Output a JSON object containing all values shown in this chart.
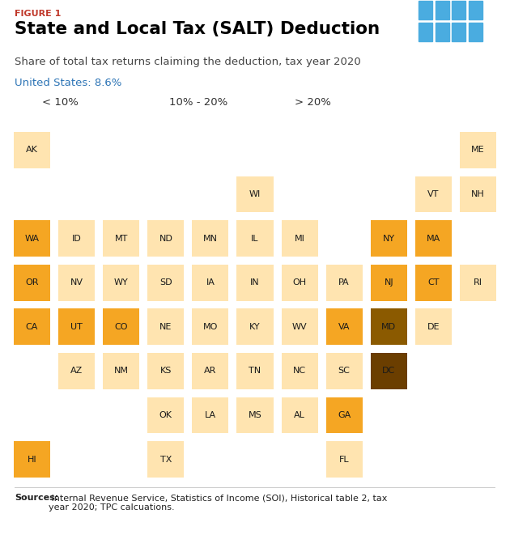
{
  "title": "State and Local Tax (SALT) Deduction",
  "figure_label": "FIGURE 1",
  "subtitle": "Share of total tax returns claiming the deduction, tax year 2020",
  "us_note": "United States: 8.6%",
  "sources_bold": "Sources:",
  "sources_rest": " Internal Revenue Service, Statistics of Income (SOI), Historical table 2, tax\nyear 2020; TPC calcuations.",
  "colors": {
    "low": "#FFE4B0",
    "mid": "#F5A623",
    "high": "#8B5A00",
    "dark_brown": "#6B3E00"
  },
  "legend": [
    {
      "label": "< 10%",
      "color": "#FFE4B0"
    },
    {
      "label": "10% - 20%",
      "color": "#F5A623"
    },
    {
      "label": "> 20%",
      "color": "#8B5A00"
    }
  ],
  "states": [
    {
      "abbr": "AK",
      "col": 0,
      "row": 0,
      "color": "#FFE4B0"
    },
    {
      "abbr": "ME",
      "col": 10,
      "row": 0,
      "color": "#FFE4B0"
    },
    {
      "abbr": "WI",
      "col": 5,
      "row": 1,
      "color": "#FFE4B0"
    },
    {
      "abbr": "VT",
      "col": 9,
      "row": 1,
      "color": "#FFE4B0"
    },
    {
      "abbr": "NH",
      "col": 10,
      "row": 1,
      "color": "#FFE4B0"
    },
    {
      "abbr": "WA",
      "col": 0,
      "row": 2,
      "color": "#F5A623"
    },
    {
      "abbr": "ID",
      "col": 1,
      "row": 2,
      "color": "#FFE4B0"
    },
    {
      "abbr": "MT",
      "col": 2,
      "row": 2,
      "color": "#FFE4B0"
    },
    {
      "abbr": "ND",
      "col": 3,
      "row": 2,
      "color": "#FFE4B0"
    },
    {
      "abbr": "MN",
      "col": 4,
      "row": 2,
      "color": "#FFE4B0"
    },
    {
      "abbr": "IL",
      "col": 5,
      "row": 2,
      "color": "#FFE4B0"
    },
    {
      "abbr": "MI",
      "col": 6,
      "row": 2,
      "color": "#FFE4B0"
    },
    {
      "abbr": "NY",
      "col": 8,
      "row": 2,
      "color": "#F5A623"
    },
    {
      "abbr": "MA",
      "col": 9,
      "row": 2,
      "color": "#F5A623"
    },
    {
      "abbr": "OR",
      "col": 0,
      "row": 3,
      "color": "#F5A623"
    },
    {
      "abbr": "NV",
      "col": 1,
      "row": 3,
      "color": "#FFE4B0"
    },
    {
      "abbr": "WY",
      "col": 2,
      "row": 3,
      "color": "#FFE4B0"
    },
    {
      "abbr": "SD",
      "col": 3,
      "row": 3,
      "color": "#FFE4B0"
    },
    {
      "abbr": "IA",
      "col": 4,
      "row": 3,
      "color": "#FFE4B0"
    },
    {
      "abbr": "IN",
      "col": 5,
      "row": 3,
      "color": "#FFE4B0"
    },
    {
      "abbr": "OH",
      "col": 6,
      "row": 3,
      "color": "#FFE4B0"
    },
    {
      "abbr": "PA",
      "col": 7,
      "row": 3,
      "color": "#FFE4B0"
    },
    {
      "abbr": "NJ",
      "col": 8,
      "row": 3,
      "color": "#F5A623"
    },
    {
      "abbr": "CT",
      "col": 9,
      "row": 3,
      "color": "#F5A623"
    },
    {
      "abbr": "RI",
      "col": 10,
      "row": 3,
      "color": "#FFE4B0"
    },
    {
      "abbr": "CA",
      "col": 0,
      "row": 4,
      "color": "#F5A623"
    },
    {
      "abbr": "UT",
      "col": 1,
      "row": 4,
      "color": "#F5A623"
    },
    {
      "abbr": "CO",
      "col": 2,
      "row": 4,
      "color": "#F5A623"
    },
    {
      "abbr": "NE",
      "col": 3,
      "row": 4,
      "color": "#FFE4B0"
    },
    {
      "abbr": "MO",
      "col": 4,
      "row": 4,
      "color": "#FFE4B0"
    },
    {
      "abbr": "KY",
      "col": 5,
      "row": 4,
      "color": "#FFE4B0"
    },
    {
      "abbr": "WV",
      "col": 6,
      "row": 4,
      "color": "#FFE4B0"
    },
    {
      "abbr": "VA",
      "col": 7,
      "row": 4,
      "color": "#F5A623"
    },
    {
      "abbr": "MD",
      "col": 8,
      "row": 4,
      "color": "#8B5A00"
    },
    {
      "abbr": "DE",
      "col": 9,
      "row": 4,
      "color": "#FFE4B0"
    },
    {
      "abbr": "AZ",
      "col": 1,
      "row": 5,
      "color": "#FFE4B0"
    },
    {
      "abbr": "NM",
      "col": 2,
      "row": 5,
      "color": "#FFE4B0"
    },
    {
      "abbr": "KS",
      "col": 3,
      "row": 5,
      "color": "#FFE4B0"
    },
    {
      "abbr": "AR",
      "col": 4,
      "row": 5,
      "color": "#FFE4B0"
    },
    {
      "abbr": "TN",
      "col": 5,
      "row": 5,
      "color": "#FFE4B0"
    },
    {
      "abbr": "NC",
      "col": 6,
      "row": 5,
      "color": "#FFE4B0"
    },
    {
      "abbr": "SC",
      "col": 7,
      "row": 5,
      "color": "#FFE4B0"
    },
    {
      "abbr": "DC",
      "col": 8,
      "row": 5,
      "color": "#6B3E00"
    },
    {
      "abbr": "OK",
      "col": 3,
      "row": 6,
      "color": "#FFE4B0"
    },
    {
      "abbr": "LA",
      "col": 4,
      "row": 6,
      "color": "#FFE4B0"
    },
    {
      "abbr": "MS",
      "col": 5,
      "row": 6,
      "color": "#FFE4B0"
    },
    {
      "abbr": "AL",
      "col": 6,
      "row": 6,
      "color": "#FFE4B0"
    },
    {
      "abbr": "GA",
      "col": 7,
      "row": 6,
      "color": "#F5A623"
    },
    {
      "abbr": "HI",
      "col": 0,
      "row": 7,
      "color": "#F5A623"
    },
    {
      "abbr": "TX",
      "col": 3,
      "row": 7,
      "color": "#FFE4B0"
    },
    {
      "abbr": "FL",
      "col": 7,
      "row": 7,
      "color": "#FFE4B0"
    }
  ],
  "tpc_bg_color": "#1B3F6E",
  "tpc_grid_color": "#4AACE0",
  "figure_label_color": "#C0392B",
  "us_note_color": "#2E75B6"
}
